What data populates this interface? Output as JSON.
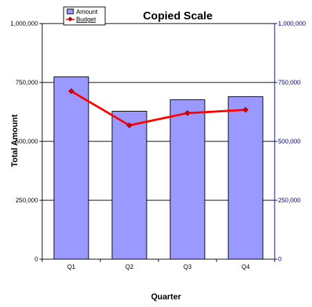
{
  "chart_data": {
    "type": "bar",
    "title": "Copied Scale",
    "xlabel": "Quarter",
    "ylabel": "Total Amount",
    "categories": [
      "Q1",
      "Q2",
      "Q3",
      "Q4"
    ],
    "series": [
      {
        "name": "Amount",
        "type": "bar",
        "values": [
          774000,
          628000,
          677000,
          690000
        ]
      },
      {
        "name": "Budget",
        "type": "line",
        "values": [
          713000,
          568000,
          620000,
          634000
        ]
      }
    ],
    "ylim": [
      0,
      1000000
    ],
    "y_ticks": [
      "0",
      "250,000",
      "500,000",
      "750,000",
      "1,000,000"
    ],
    "y_tick_values": [
      0,
      250000,
      500000,
      750000,
      1000000
    ],
    "y2_ticks": [
      "0",
      "250,000",
      "500,000",
      "750,000",
      "1,000,000"
    ],
    "grid": true,
    "legend_position": "top-left",
    "colors": {
      "bar_fill": "#9999ff",
      "bar_stroke": "#000000",
      "line": "#ff0000",
      "marker": "#cc0000",
      "grid": "#000000",
      "right_axis": "#000080"
    }
  }
}
